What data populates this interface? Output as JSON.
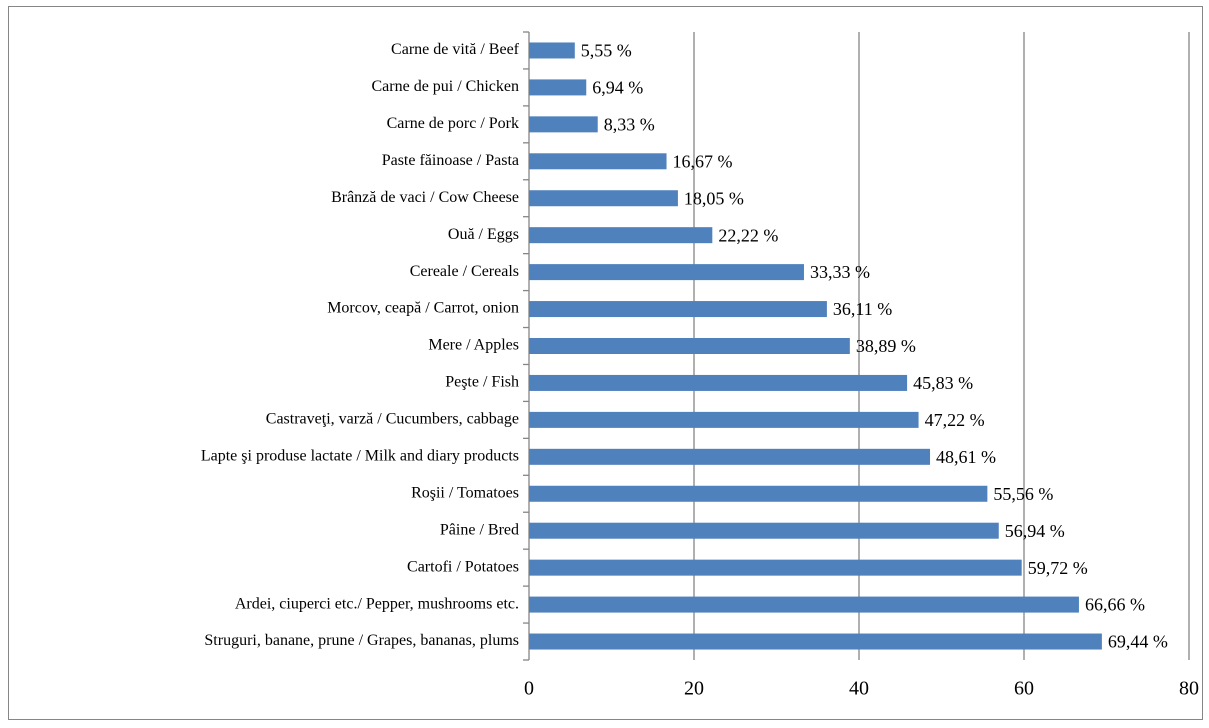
{
  "chart_data": {
    "type": "barh",
    "categories": [
      "Carne de vită / Beef",
      "Carne de pui / Chicken",
      "Carne de porc / Pork",
      "Paste făinoase / Pasta",
      "Brânză de vaci / Cow Cheese",
      "Ouă / Eggs",
      "Cereale / Cereals",
      "Morcov, ceapă / Carrot, onion",
      "Mere / Apples",
      "Peşte / Fish",
      "Castraveţi, varză / Cucumbers, cabbage",
      "Lapte şi produse lactate / Milk and diary products",
      "Roşii / Tomatoes",
      "Pâine / Bred",
      "Cartofi / Potatoes",
      "Ardei, ciuperci etc./ Pepper, mushrooms etc.",
      "Struguri, banane,  prune / Grapes, bananas, plums"
    ],
    "values": [
      5.55,
      6.94,
      8.33,
      16.67,
      18.05,
      22.22,
      33.33,
      36.11,
      38.89,
      45.83,
      47.22,
      48.61,
      55.56,
      56.94,
      59.72,
      66.66,
      69.44
    ],
    "value_labels": [
      "5,55 %",
      "6,94 %",
      "8,33 %",
      "16,67 %",
      "18,05 %",
      "22,22 %",
      "33,33 %",
      "36,11 %",
      "38,89 %",
      "45,83 %",
      "47,22 %",
      "48,61 %",
      "55,56 %",
      "56,94 %",
      "59,72 %",
      "66,66 %",
      "69,44 %"
    ],
    "color": "#4f81bd",
    "xlim": [
      0,
      80
    ],
    "xticks": [
      0,
      20,
      40,
      60,
      80
    ],
    "grid": true
  }
}
